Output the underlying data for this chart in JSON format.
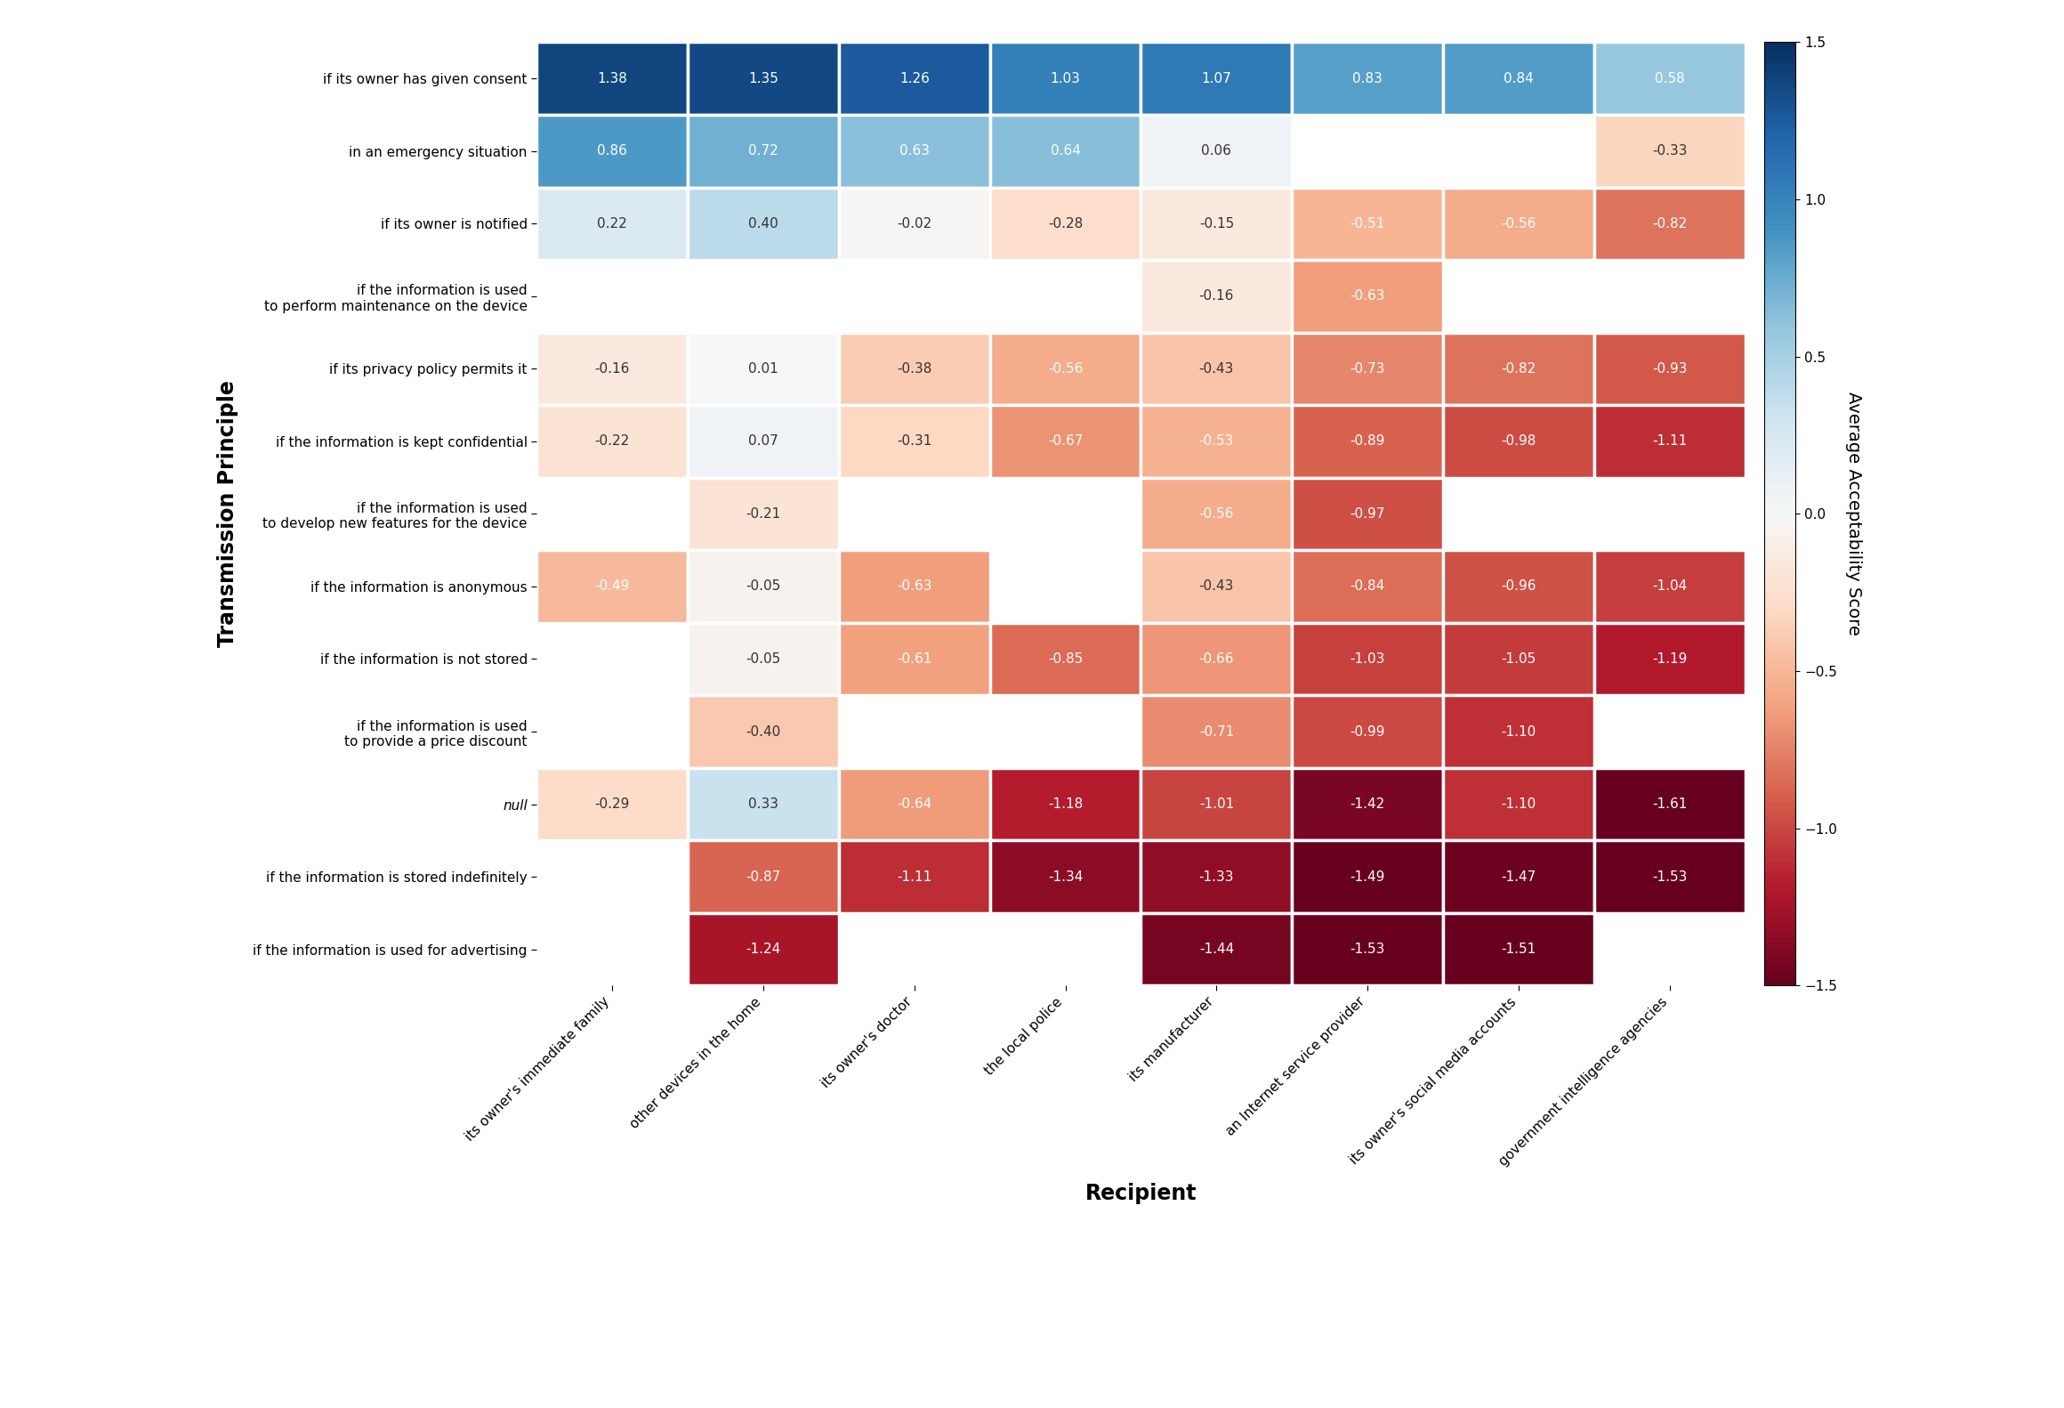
{
  "recipients": [
    "its owner's immediate family",
    "other devices in the home",
    "its owner's doctor",
    "the local police",
    "its manufacturer",
    "an Internet service provider",
    "its owner's social media accounts",
    "government intelligence agencies"
  ],
  "transmission_principles": [
    "if its owner has given consent",
    "in an emergency situation",
    "if its owner is notified",
    "if the information is used\nto perform maintenance on the device",
    "if its privacy policy permits it",
    "if the information is kept confidential",
    "if the information is used\nto develop new features for the device",
    "if the information is anonymous",
    "if the information is not stored",
    "if the information is used\nto provide a price discount",
    "null",
    "if the information is stored indefinitely",
    "if the information is used for advertising"
  ],
  "values": [
    [
      1.38,
      1.35,
      1.26,
      1.03,
      1.07,
      0.83,
      0.84,
      0.58
    ],
    [
      0.86,
      0.72,
      0.63,
      0.64,
      0.06,
      null,
      null,
      -0.33
    ],
    [
      0.22,
      0.4,
      -0.02,
      -0.28,
      -0.15,
      -0.51,
      -0.56,
      -0.82
    ],
    [
      null,
      null,
      null,
      null,
      -0.16,
      -0.63,
      null,
      null
    ],
    [
      -0.16,
      0.01,
      -0.38,
      -0.56,
      -0.43,
      -0.73,
      -0.82,
      -0.93
    ],
    [
      -0.22,
      0.07,
      -0.31,
      -0.67,
      -0.53,
      -0.89,
      -0.98,
      -1.11
    ],
    [
      null,
      -0.21,
      null,
      null,
      -0.56,
      -0.97,
      null,
      null
    ],
    [
      -0.49,
      -0.05,
      -0.63,
      null,
      -0.43,
      -0.84,
      -0.96,
      -1.04
    ],
    [
      null,
      -0.05,
      -0.61,
      -0.85,
      -0.66,
      -1.03,
      -1.05,
      -1.19
    ],
    [
      null,
      -0.4,
      null,
      null,
      -0.71,
      -0.99,
      -1.1,
      null
    ],
    [
      -0.29,
      0.33,
      -0.64,
      -1.18,
      -1.01,
      -1.42,
      -1.1,
      -1.61
    ],
    [
      null,
      -0.87,
      -1.11,
      -1.34,
      -1.33,
      -1.49,
      -1.47,
      -1.53
    ],
    [
      null,
      -1.24,
      null,
      null,
      -1.44,
      -1.53,
      -1.51,
      null
    ]
  ],
  "vmin": -1.5,
  "vmax": 1.5,
  "xlabel": "Recipient",
  "ylabel": "Transmission Principle",
  "colorbar_label": "Average Acceptability Score",
  "label_fontsize": 15,
  "tick_fontsize": 11,
  "annot_fontsize": 11,
  "colormap": "RdBu",
  "background_color": "#ffffff"
}
